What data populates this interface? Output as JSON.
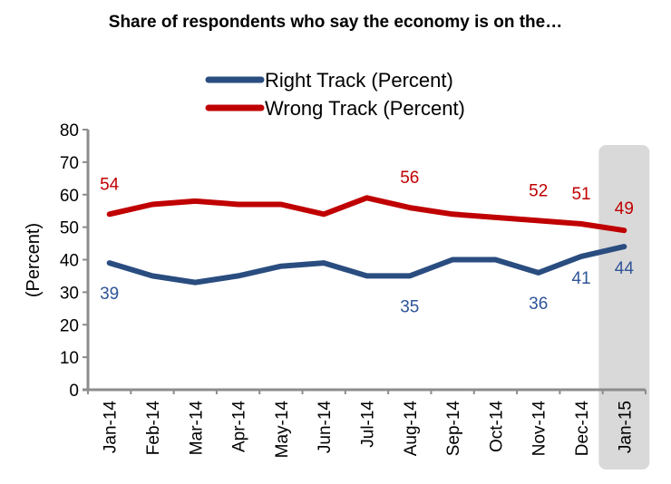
{
  "chart_data": {
    "type": "line",
    "title": "Share of respondents who say the economy is on the…",
    "ylabel": "(Percent)",
    "xlabel": "",
    "ylim": [
      0,
      80
    ],
    "yticks": [
      "0",
      "10",
      "20",
      "30",
      "40",
      "50",
      "60",
      "70",
      "80"
    ],
    "categories": [
      "Jan-14",
      "Feb-14",
      "Mar-14",
      "Apr-14",
      "May-14",
      "Jun-14",
      "Jul-14",
      "Aug-14",
      "Sep-14",
      "Oct-14",
      "Nov-14",
      "Dec-14",
      "Jan-15"
    ],
    "legend_position": "top",
    "highlight_category": "Jan-15",
    "series": [
      {
        "name": "Right Track (Percent)",
        "color": "#2a4d80",
        "label_color": "#2f5597",
        "values": [
          39,
          35,
          33,
          35,
          38,
          39,
          35,
          35,
          40,
          40,
          36,
          41,
          44
        ],
        "labels": [
          {
            "index": 0,
            "text": "39"
          },
          {
            "index": 7,
            "text": "35"
          },
          {
            "index": 10,
            "text": "36"
          },
          {
            "index": 11,
            "text": "41"
          },
          {
            "index": 12,
            "text": "44"
          }
        ]
      },
      {
        "name": "Wrong Track (Percent)",
        "color": "#c00000",
        "label_color": "#c00000",
        "values": [
          54,
          57,
          58,
          57,
          57,
          54,
          59,
          56,
          54,
          53,
          52,
          51,
          49
        ],
        "labels": [
          {
            "index": 0,
            "text": "54"
          },
          {
            "index": 7,
            "text": "56"
          },
          {
            "index": 10,
            "text": "52"
          },
          {
            "index": 11,
            "text": "51"
          },
          {
            "index": 12,
            "text": "49"
          }
        ]
      }
    ]
  }
}
